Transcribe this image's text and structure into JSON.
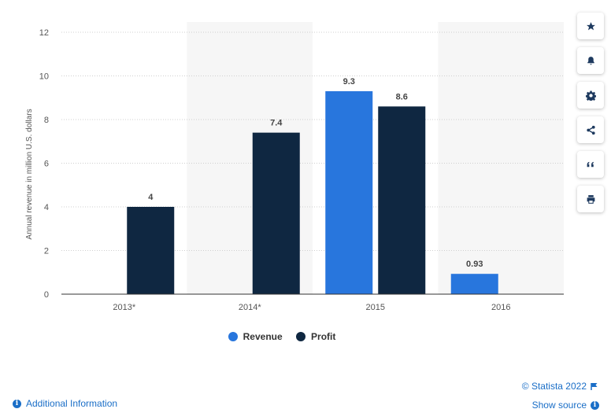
{
  "chart_data": {
    "type": "bar",
    "categories": [
      "2013*",
      "2014*",
      "2015",
      "2016"
    ],
    "series": [
      {
        "name": "Revenue",
        "color": "#2876dd",
        "values": [
          null,
          null,
          9.3,
          0.93
        ]
      },
      {
        "name": "Profit",
        "color": "#0f2741",
        "values": [
          4,
          7.4,
          8.6,
          null
        ]
      }
    ],
    "data_labels": {
      "Revenue": [
        null,
        null,
        "9.3",
        "0.93"
      ],
      "Profit": [
        "4",
        "7.4",
        "8.6",
        null
      ]
    },
    "title": "",
    "xlabel": "",
    "ylabel": "Annual revenue in million U.S. dollars",
    "ylim": [
      0,
      12
    ],
    "yticks": [
      0,
      2,
      4,
      6,
      8,
      10,
      12
    ],
    "ytick_labels": [
      "0",
      "2",
      "4",
      "6",
      "8",
      "10",
      "12"
    ],
    "grid": true,
    "legend_position": "bottom-center"
  },
  "legend": {
    "revenue_label": "Revenue",
    "profit_label": "Profit"
  },
  "toolbar": {
    "icons": [
      "star-icon",
      "bell-icon",
      "gear-icon",
      "share-icon",
      "quote-icon",
      "print-icon"
    ]
  },
  "footer": {
    "additional_info": "Additional Information",
    "credit": "© Statista 2022",
    "show_source": "Show source"
  }
}
